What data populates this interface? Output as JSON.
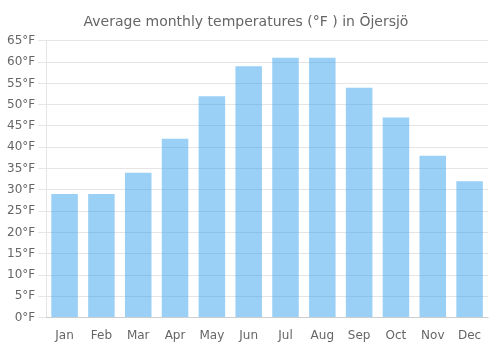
{
  "chart_data": {
    "type": "bar",
    "title": "Average monthly temperatures (°F ) in Ōjersjö",
    "categories": [
      "Jan",
      "Feb",
      "Mar",
      "Apr",
      "May",
      "Jun",
      "Jul",
      "Aug",
      "Sep",
      "Oct",
      "Nov",
      "Dec"
    ],
    "values": [
      29,
      29,
      34,
      42,
      52,
      59,
      61,
      61,
      54,
      47,
      38,
      32
    ],
    "ylim": [
      0,
      65
    ],
    "yticks": [
      {
        "value": 0,
        "label": "0°F"
      },
      {
        "value": 5,
        "label": "5°F"
      },
      {
        "value": 10,
        "label": "10°F"
      },
      {
        "value": 15,
        "label": "15°F"
      },
      {
        "value": 20,
        "label": "20°F"
      },
      {
        "value": 25,
        "label": "25°F"
      },
      {
        "value": 30,
        "label": "30°F"
      },
      {
        "value": 35,
        "label": "35°F"
      },
      {
        "value": 40,
        "label": "40°F"
      },
      {
        "value": 45,
        "label": "45°F"
      },
      {
        "value": 50,
        "label": "50°F"
      },
      {
        "value": 55,
        "label": "55°F"
      },
      {
        "value": 60,
        "label": "60°F"
      },
      {
        "value": 65,
        "label": "65°F"
      }
    ],
    "grid": true
  }
}
